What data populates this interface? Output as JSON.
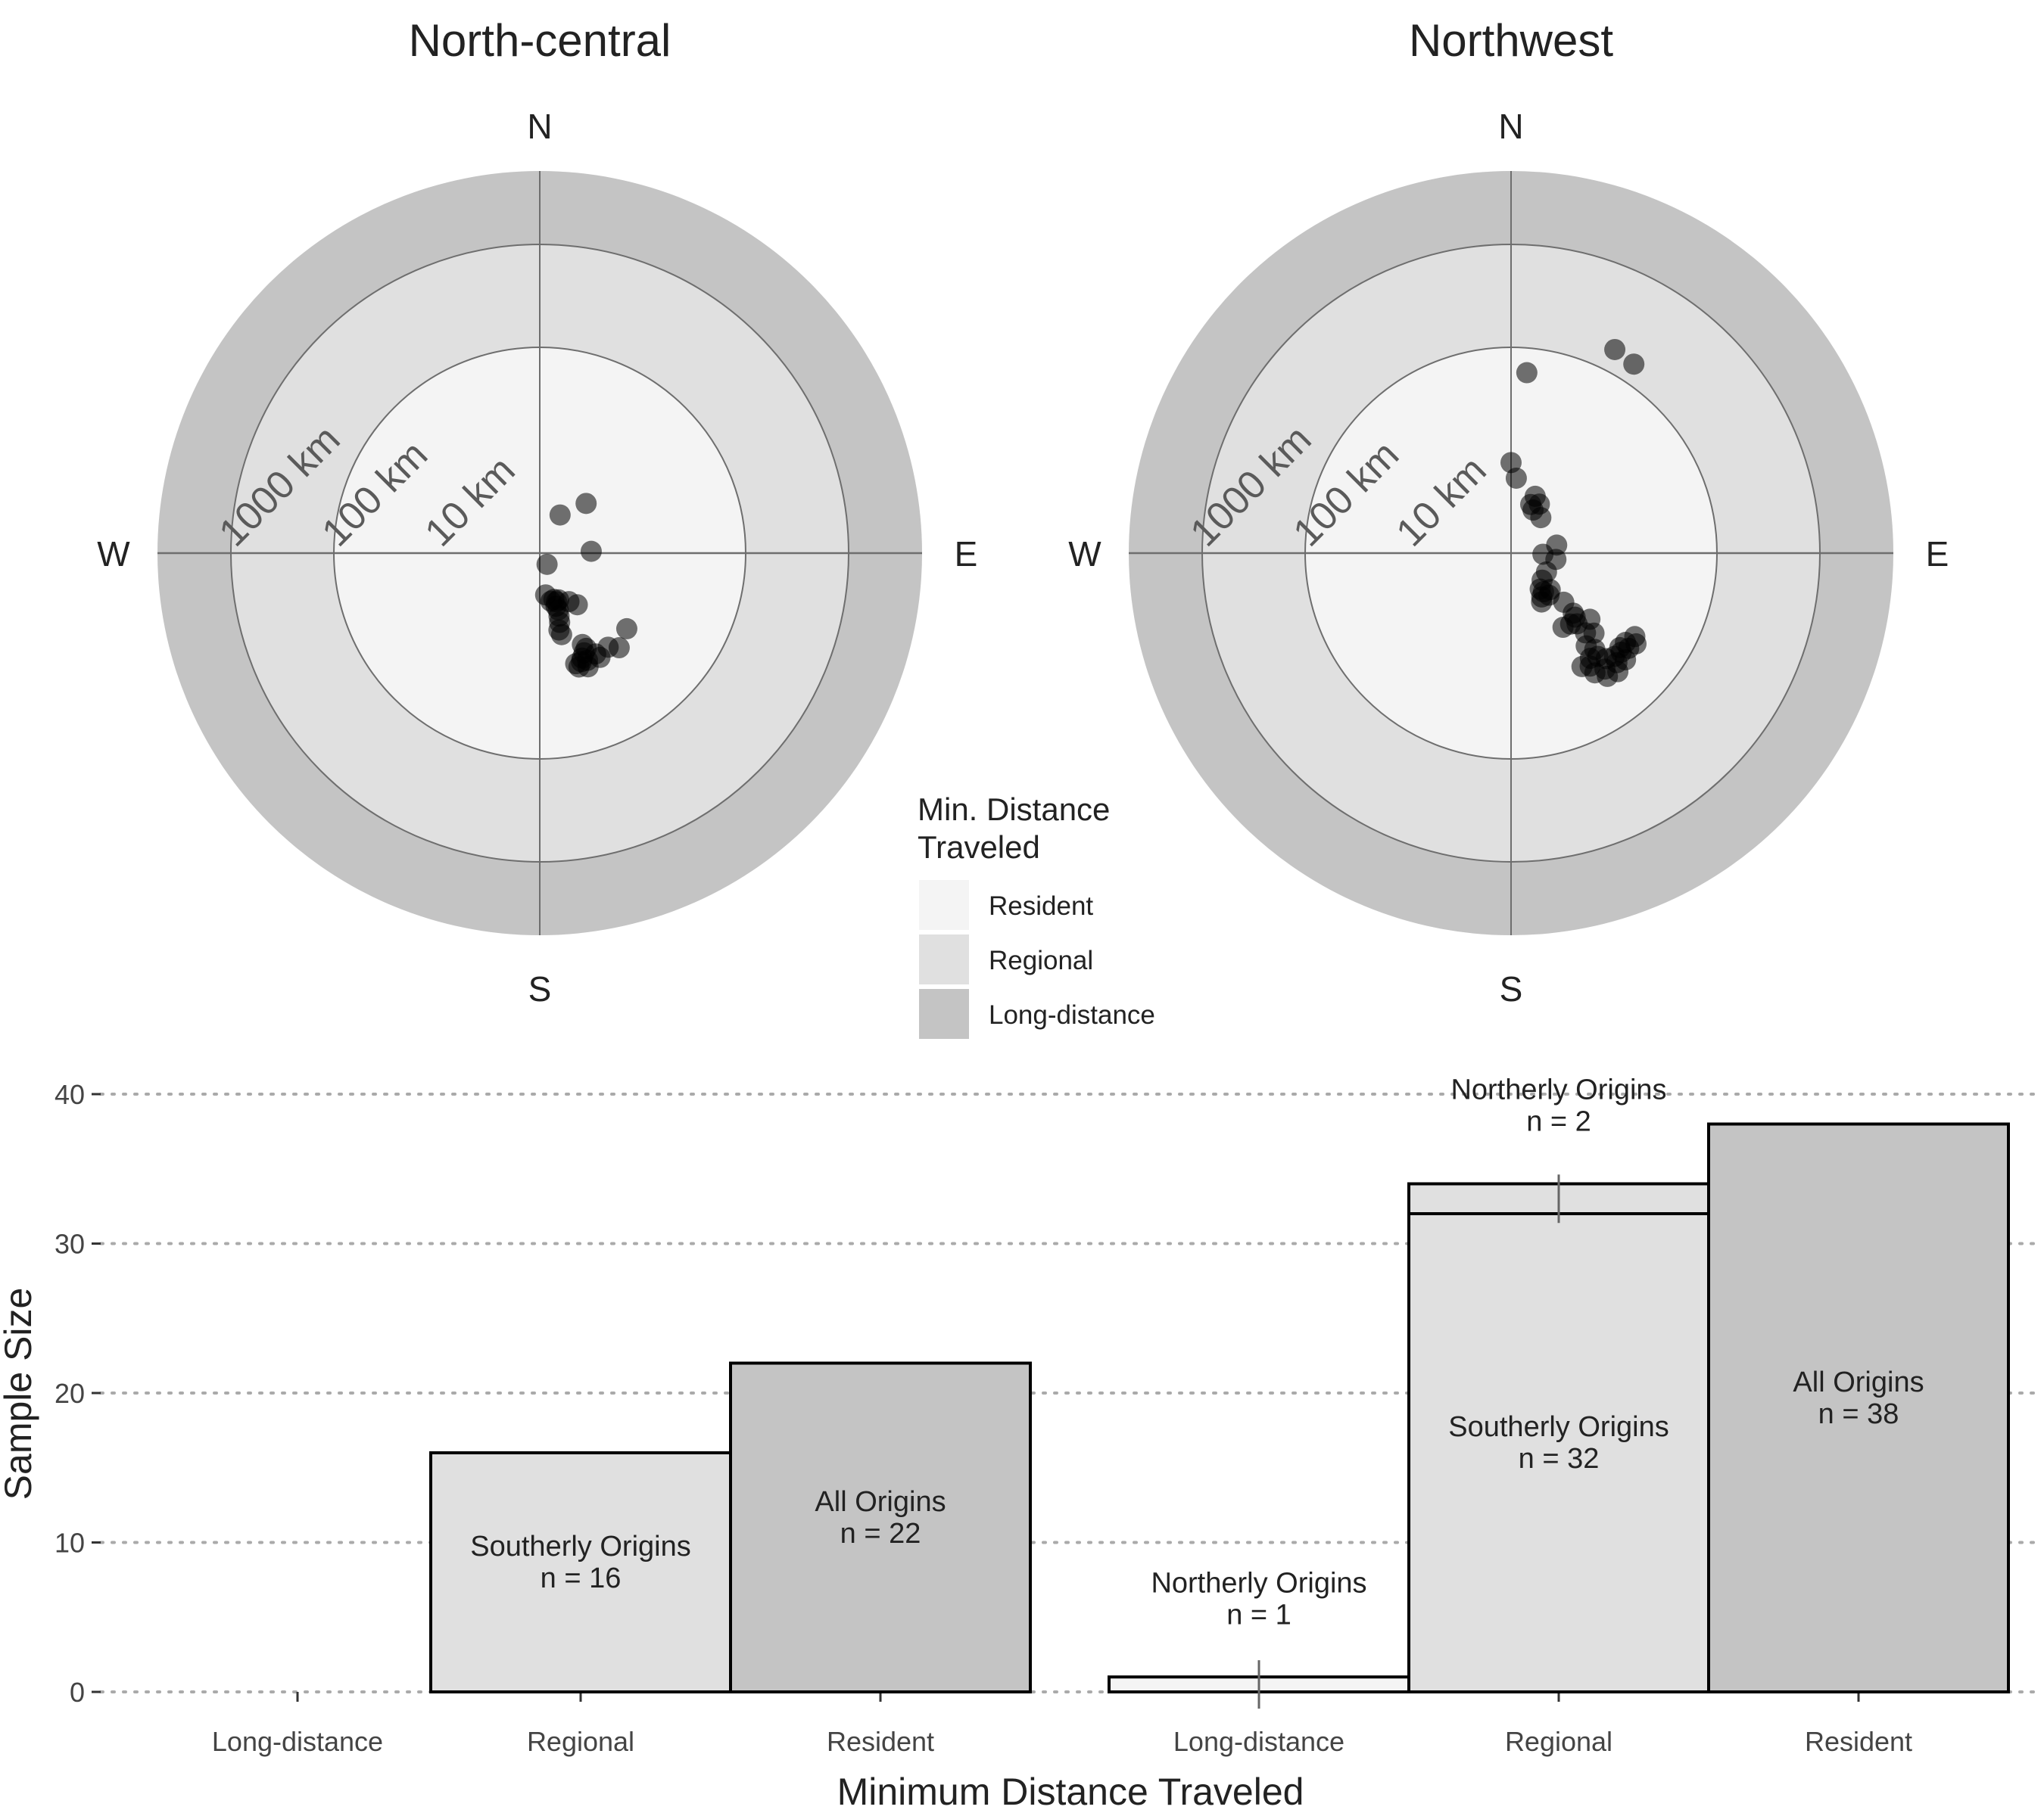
{
  "chart_data": [
    {
      "type": "scatter",
      "subtype": "polar",
      "title": "North-central",
      "compass": [
        "N",
        "E",
        "S",
        "W"
      ],
      "ring_labels": [
        "10 km",
        "100 km",
        "1000 km"
      ],
      "points": [
        {
          "angle": 43,
          "dist": 0.66
        },
        {
          "angle": 28,
          "dist": 0.42
        },
        {
          "angle": 88,
          "dist": 0.5
        },
        {
          "angle": 147,
          "dist": 0.13
        },
        {
          "angle": 172,
          "dist": 0.41
        },
        {
          "angle": 167,
          "dist": 0.48
        },
        {
          "angle": 163,
          "dist": 0.47
        },
        {
          "angle": 161,
          "dist": 0.5
        },
        {
          "angle": 158,
          "dist": 0.49
        },
        {
          "angle": 149,
          "dist": 0.55
        },
        {
          "angle": 144,
          "dist": 0.62
        },
        {
          "angle": 163,
          "dist": 0.54
        },
        {
          "angle": 162,
          "dist": 0.58
        },
        {
          "angle": 163,
          "dist": 0.64
        },
        {
          "angle": 164,
          "dist": 0.7
        },
        {
          "angle": 166,
          "dist": 0.77
        },
        {
          "angle": 165,
          "dist": 0.82
        },
        {
          "angle": 155,
          "dist": 0.98
        },
        {
          "angle": 154,
          "dist": 1.03
        },
        {
          "angle": 156,
          "dist": 1.06
        },
        {
          "angle": 158,
          "dist": 1.1
        },
        {
          "angle": 159,
          "dist": 1.13
        },
        {
          "angle": 162,
          "dist": 1.13
        },
        {
          "angle": 161,
          "dist": 1.17
        },
        {
          "angle": 151,
          "dist": 1.12
        },
        {
          "angle": 150,
          "dist": 1.17
        },
        {
          "angle": 144,
          "dist": 1.13
        },
        {
          "angle": 140,
          "dist": 1.2
        },
        {
          "angle": 131,
          "dist": 1.12
        },
        {
          "angle": 156,
          "dist": 1.14
        },
        {
          "angle": 157,
          "dist": 1.2
        }
      ]
    },
    {
      "type": "scatter",
      "subtype": "polar",
      "title": "Northwest",
      "compass": [
        "N",
        "E",
        "S",
        "W"
      ],
      "ring_labels": [
        "10 km",
        "100 km",
        "1000 km"
      ],
      "points": [
        {
          "angle": 27,
          "dist": 2.22
        },
        {
          "angle": 33,
          "dist": 2.19
        },
        {
          "angle": 5,
          "dist": 1.76
        },
        {
          "angle": 0,
          "dist": 0.88
        },
        {
          "angle": 4,
          "dist": 0.73
        },
        {
          "angle": 23,
          "dist": 0.6
        },
        {
          "angle": 22,
          "dist": 0.51
        },
        {
          "angle": 30,
          "dist": 0.55
        },
        {
          "angle": 40,
          "dist": 0.45
        },
        {
          "angle": 27,
          "dist": 0.47
        },
        {
          "angle": 80,
          "dist": 0.45
        },
        {
          "angle": 92,
          "dist": 0.31
        },
        {
          "angle": 98,
          "dist": 0.44
        },
        {
          "angle": 118,
          "dist": 0.39
        },
        {
          "angle": 131,
          "dist": 0.4
        },
        {
          "angle": 141,
          "dist": 0.45
        },
        {
          "angle": 133,
          "dist": 0.52
        },
        {
          "angle": 138,
          "dist": 0.55
        },
        {
          "angle": 145,
          "dist": 0.52
        },
        {
          "angle": 148,
          "dist": 0.56
        },
        {
          "angle": 140,
          "dist": 0.49
        },
        {
          "angle": 133,
          "dist": 0.7
        },
        {
          "angle": 134,
          "dist": 0.84
        },
        {
          "angle": 135,
          "dist": 0.88
        },
        {
          "angle": 140,
          "dist": 0.9
        },
        {
          "angle": 145,
          "dist": 0.88
        },
        {
          "angle": 137,
          "dist": 0.94
        },
        {
          "angle": 130,
          "dist": 1.0
        },
        {
          "angle": 137,
          "dist": 1.06
        },
        {
          "angle": 134,
          "dist": 1.12
        },
        {
          "angle": 141,
          "dist": 1.16
        },
        {
          "angle": 139,
          "dist": 1.24
        },
        {
          "angle": 143,
          "dist": 1.28
        },
        {
          "angle": 140,
          "dist": 1.31
        },
        {
          "angle": 145,
          "dist": 1.34
        },
        {
          "angle": 148,
          "dist": 1.3
        },
        {
          "angle": 138,
          "dist": 1.38
        },
        {
          "angle": 135,
          "dist": 1.42
        },
        {
          "angle": 132,
          "dist": 1.44
        },
        {
          "angle": 129,
          "dist": 1.47
        },
        {
          "angle": 126,
          "dist": 1.5
        },
        {
          "angle": 128,
          "dist": 1.41
        },
        {
          "angle": 136,
          "dist": 1.48
        },
        {
          "angle": 141,
          "dist": 1.45
        },
        {
          "angle": 145,
          "dist": 1.42
        },
        {
          "angle": 142,
          "dist": 1.52
        },
        {
          "angle": 138,
          "dist": 1.55
        },
        {
          "angle": 133,
          "dist": 1.52
        },
        {
          "angle": 131,
          "dist": 1.4
        },
        {
          "angle": 124,
          "dist": 1.45
        }
      ]
    },
    {
      "type": "bar",
      "xlabel": "Minimum Distance Traveled",
      "ylabel": "Sample Size",
      "ylim": [
        0,
        40
      ],
      "yticks": [
        0,
        10,
        20,
        30,
        40
      ],
      "grid": "horizontal dotted",
      "panels": [
        {
          "categories": [
            "Long-distance",
            "Regional",
            "Resident"
          ],
          "bars": [
            {
              "category": "Long-distance",
              "segments": []
            },
            {
              "category": "Regional",
              "segments": [
                {
                  "group": "Southerly Origins",
                  "value": 16,
                  "label": "Southerly Origins\nn = 16",
                  "fill": "regional"
                }
              ]
            },
            {
              "category": "Resident",
              "segments": [
                {
                  "group": "All Origins",
                  "value": 22,
                  "label": "All Origins\nn = 22",
                  "fill": "long"
                }
              ]
            }
          ]
        },
        {
          "categories": [
            "Long-distance",
            "Regional",
            "Resident"
          ],
          "bars": [
            {
              "category": "Long-distance",
              "segments": [
                {
                  "group": "Northerly Origins",
                  "value": 1,
                  "label": "Northerly Origins\nn = 1",
                  "fill": "resident",
                  "callout": true
                }
              ]
            },
            {
              "category": "Regional",
              "segments": [
                {
                  "group": "Southerly Origins",
                  "value": 32,
                  "label": "Southerly Origins\nn = 32",
                  "fill": "regional"
                },
                {
                  "group": "Northerly Origins",
                  "value": 2,
                  "label": "Northerly Origins\nn = 2",
                  "fill": "regional",
                  "callout": true
                }
              ]
            },
            {
              "category": "Resident",
              "segments": [
                {
                  "group": "All Origins",
                  "value": 38,
                  "label": "All Origins\nn = 38",
                  "fill": "long"
                }
              ]
            }
          ]
        }
      ]
    }
  ],
  "legend": {
    "title_line1": "Min. Distance",
    "title_line2": "Traveled",
    "placement": "between-panels",
    "items": [
      {
        "label": "Resident",
        "color": "#f4f4f4"
      },
      {
        "label": "Regional",
        "color": "#e0e0e0"
      },
      {
        "label": "Long-distance",
        "color": "#c4c4c4"
      }
    ]
  },
  "colors": {
    "resident": "#f4f4f4",
    "regional": "#e0e0e0",
    "long": "#c4c4c4",
    "point": "#000000",
    "gridline": "#6e6e6e",
    "dotgrid": "#aaaaaa"
  }
}
